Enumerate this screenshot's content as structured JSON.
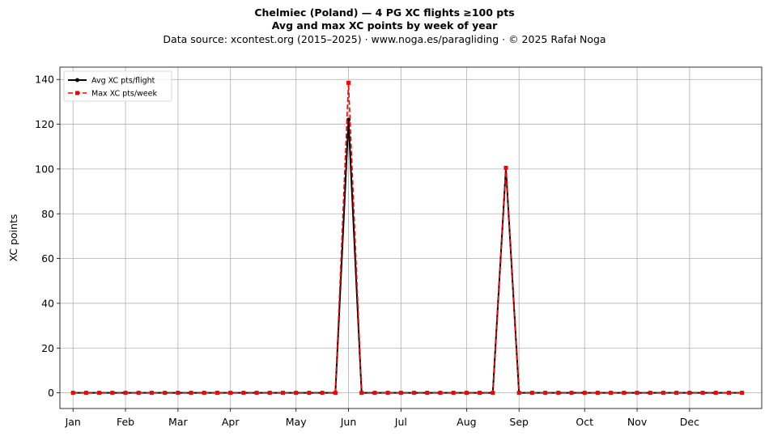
{
  "chart_data": {
    "type": "line",
    "title": "Chelmiec (Poland)  —  4 PG XC flights ≥100 pts",
    "subtitle": "Avg and max XC points by week of year",
    "source_line": "Data source: xcontest.org (2015–2025)  ·  www.noga.es/paragliding  ·  © 2025 Rafał Noga",
    "xlabel": "",
    "ylabel": "XC points",
    "xlim": [
      0,
      53.5
    ],
    "ylim": [
      -7,
      145.5
    ],
    "grid": true,
    "legend_position": "top-left",
    "x_ticks": [
      {
        "label": "Jan",
        "week": 1
      },
      {
        "label": "Feb",
        "week": 5
      },
      {
        "label": "Mar",
        "week": 9
      },
      {
        "label": "Apr",
        "week": 13
      },
      {
        "label": "May",
        "week": 18
      },
      {
        "label": "Jun",
        "week": 22
      },
      {
        "label": "Jul",
        "week": 26
      },
      {
        "label": "Aug",
        "week": 31
      },
      {
        "label": "Sep",
        "week": 35
      },
      {
        "label": "Oct",
        "week": 40
      },
      {
        "label": "Nov",
        "week": 44
      },
      {
        "label": "Dec",
        "week": 48
      }
    ],
    "y_ticks": [
      0,
      20,
      40,
      60,
      80,
      100,
      120,
      140
    ],
    "x": [
      1,
      2,
      3,
      4,
      5,
      6,
      7,
      8,
      9,
      10,
      11,
      12,
      13,
      14,
      15,
      16,
      17,
      18,
      19,
      20,
      21,
      22,
      23,
      24,
      25,
      26,
      27,
      28,
      29,
      30,
      31,
      32,
      33,
      34,
      35,
      36,
      37,
      38,
      39,
      40,
      41,
      42,
      43,
      44,
      45,
      46,
      47,
      48,
      49,
      50,
      51,
      52
    ],
    "series": [
      {
        "name": "Avg XC pts/flight",
        "color": "#000000",
        "style": "solid",
        "marker": "circle",
        "values": [
          0,
          0,
          0,
          0,
          0,
          0,
          0,
          0,
          0,
          0,
          0,
          0,
          0,
          0,
          0,
          0,
          0,
          0,
          0,
          0,
          0,
          122,
          0,
          0,
          0,
          0,
          0,
          0,
          0,
          0,
          0,
          0,
          0,
          100.5,
          0,
          0,
          0,
          0,
          0,
          0,
          0,
          0,
          0,
          0,
          0,
          0,
          0,
          0,
          0,
          0,
          0,
          0
        ]
      },
      {
        "name": "Max XC pts/week",
        "color": "#ff0000",
        "style": "dashed",
        "marker": "square",
        "values": [
          0,
          0,
          0,
          0,
          0,
          0,
          0,
          0,
          0,
          0,
          0,
          0,
          0,
          0,
          0,
          0,
          0,
          0,
          0,
          0,
          0,
          138.5,
          0,
          0,
          0,
          0,
          0,
          0,
          0,
          0,
          0,
          0,
          0,
          100.5,
          0,
          0,
          0,
          0,
          0,
          0,
          0,
          0,
          0,
          0,
          0,
          0,
          0,
          0,
          0,
          0,
          0,
          0
        ]
      }
    ]
  }
}
